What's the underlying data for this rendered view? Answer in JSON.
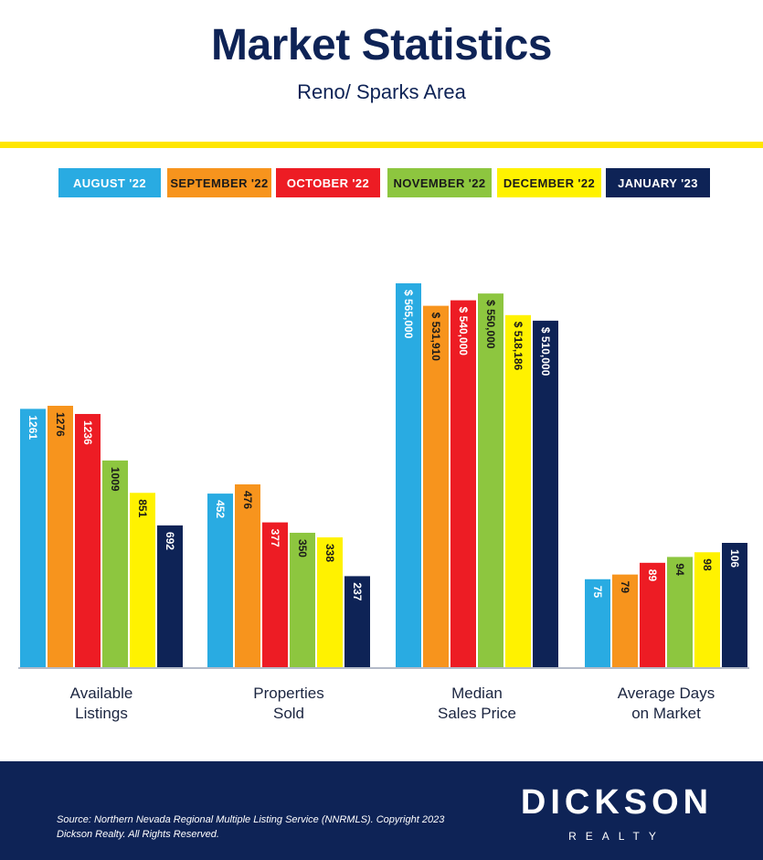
{
  "header": {
    "title": "Market Statistics",
    "subtitle": "Reno/ Sparks Area"
  },
  "legend": [
    {
      "label": "AUGUST '22",
      "color": "#29abe2",
      "text_color": "#ffffff"
    },
    {
      "label": "SEPTEMBER '22",
      "color": "#f7941d",
      "text_color": "#1a1a1a"
    },
    {
      "label": "OCTOBER '22",
      "color": "#ed1c24",
      "text_color": "#ffffff"
    },
    {
      "label": "NOVEMBER '22",
      "color": "#8dc63f",
      "text_color": "#1a1a1a"
    },
    {
      "label": "DECEMBER '22",
      "color": "#fff200",
      "text_color": "#1a1a1a"
    },
    {
      "label": "JANUARY '23",
      "color": "#0e2356",
      "text_color": "#ffffff"
    }
  ],
  "chart_data": {
    "type": "bar",
    "grid": false,
    "legend_position": "top",
    "series": [
      "AUGUST '22",
      "SEPTEMBER '22",
      "OCTOBER '22",
      "NOVEMBER '22",
      "DECEMBER '22",
      "JANUARY '23"
    ],
    "groups": [
      {
        "category": [
          "Available",
          "Listings"
        ],
        "values": [
          1261,
          1276,
          1236,
          1009,
          851,
          692
        ],
        "labels": [
          "1261",
          "1276",
          "1236",
          "1009",
          "851",
          "692"
        ]
      },
      {
        "category": [
          "Properties",
          "Sold"
        ],
        "values": [
          452,
          476,
          377,
          350,
          338,
          237
        ],
        "labels": [
          "452",
          "476",
          "377",
          "350",
          "338",
          "237"
        ]
      },
      {
        "category": [
          "Median",
          "Sales Price"
        ],
        "values": [
          565000,
          531910,
          540000,
          550000,
          518186,
          510000
        ],
        "labels": [
          "$ 565,000",
          "$ 531,910",
          "$ 540,000",
          "$ 550,000",
          "$ 518,186",
          "$ 510,000"
        ]
      },
      {
        "category": [
          "Average Days",
          "on Market"
        ],
        "values": [
          75,
          79,
          89,
          94,
          98,
          106
        ],
        "labels": [
          "75",
          "79",
          "89",
          "94",
          "98",
          "106"
        ]
      }
    ]
  },
  "footer": {
    "source": "Source: Northern Nevada Regional Multiple Listing Service (NNRMLS). Copyright 2023 Dickson Realty. All Rights Reserved.",
    "brand": "DICKSON",
    "brand_sub": "REALTY"
  }
}
